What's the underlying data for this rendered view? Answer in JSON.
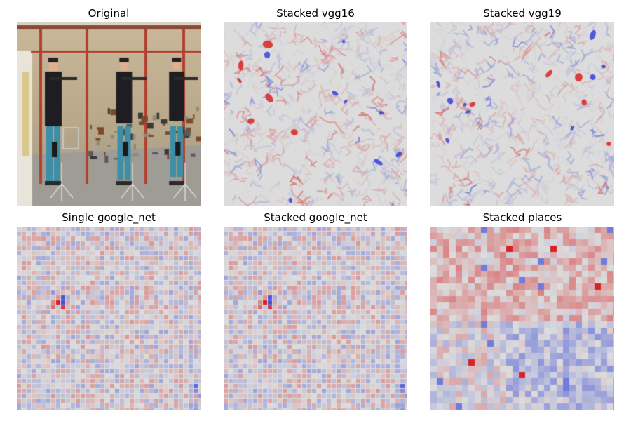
{
  "panels": [
    {
      "title": "Original",
      "kind": "photo"
    },
    {
      "title": "Stacked vgg16",
      "kind": "edge-saliency"
    },
    {
      "title": "Stacked vgg19",
      "kind": "edge-saliency"
    },
    {
      "title": "Single google_net",
      "kind": "fine-grid-saliency"
    },
    {
      "title": "Stacked google_net",
      "kind": "fine-grid-saliency"
    },
    {
      "title": "Stacked places",
      "kind": "coarse-grid-saliency"
    }
  ],
  "colors": {
    "positive": "#d7191c",
    "negative": "#2c3bd6",
    "neutral": "#dcdcdc"
  }
}
